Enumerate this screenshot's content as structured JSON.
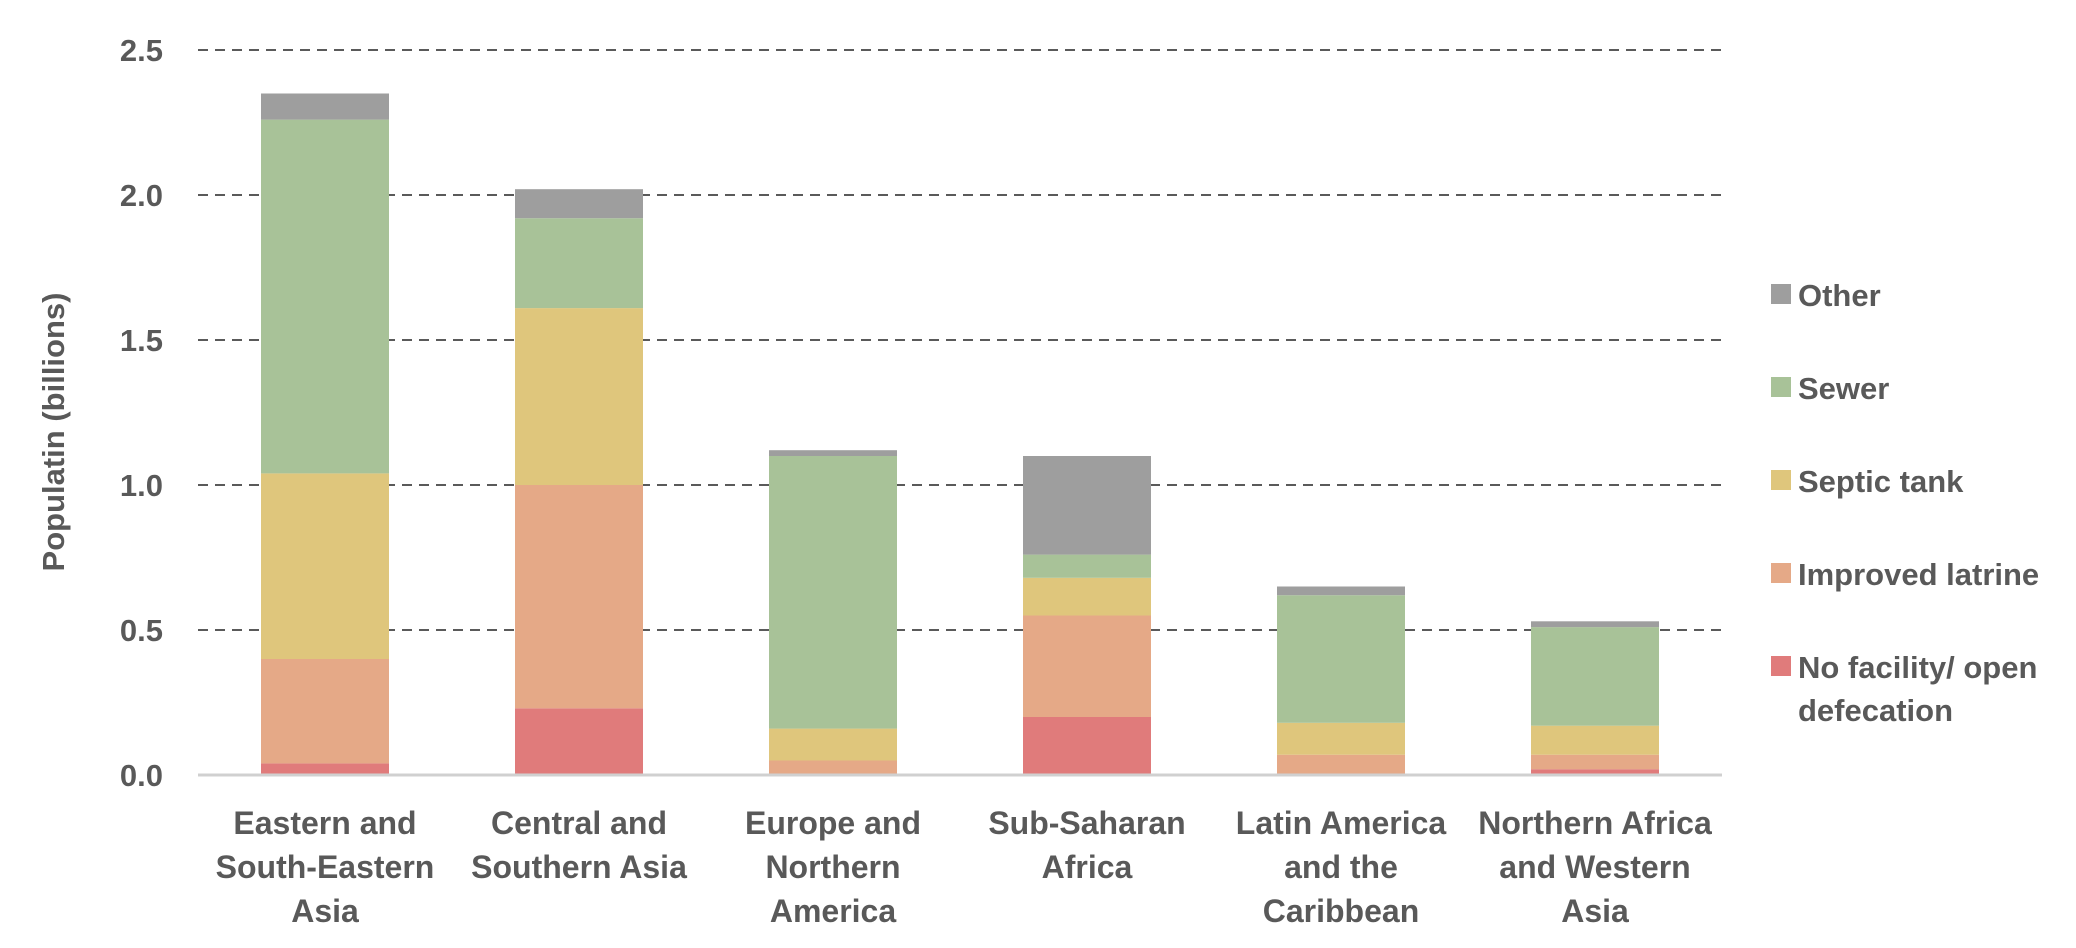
{
  "chart_data": {
    "type": "bar",
    "stacked": true,
    "ylabel": "Populatin (billions)",
    "ylim": [
      0,
      2.5
    ],
    "yticks": [
      "0.0",
      "0.5",
      "1.0",
      "1.5",
      "2.0",
      "2.5"
    ],
    "grid": "horizontal dashed",
    "legend_position": "right",
    "categories": [
      [
        "Eastern and",
        "South-Eastern",
        "Asia"
      ],
      [
        "Central and",
        "Southern Asia"
      ],
      [
        "Europe and",
        "Northern",
        "America"
      ],
      [
        "Sub-Saharan",
        "Africa"
      ],
      [
        "Latin America",
        "and the",
        "Caribbean"
      ],
      [
        "Northern Africa",
        "and Western",
        "Asia"
      ]
    ],
    "series": [
      {
        "name": "No facility/ open defecation",
        "legend_lines": [
          "No facility/ open",
          "defecation"
        ],
        "color": "#E07B7B",
        "values": [
          0.04,
          0.23,
          0.0,
          0.2,
          0.0,
          0.02
        ]
      },
      {
        "name": "Improved latrine",
        "legend_lines": [
          "Improved latrine"
        ],
        "color": "#E5A987",
        "values": [
          0.36,
          0.77,
          0.05,
          0.35,
          0.07,
          0.05
        ]
      },
      {
        "name": "Septic tank",
        "legend_lines": [
          "Septic tank"
        ],
        "color": "#DFC67C",
        "values": [
          0.64,
          0.61,
          0.11,
          0.13,
          0.11,
          0.1
        ]
      },
      {
        "name": "Sewer",
        "legend_lines": [
          "Sewer"
        ],
        "color": "#A8C298",
        "values": [
          1.22,
          0.31,
          0.94,
          0.08,
          0.44,
          0.34
        ]
      },
      {
        "name": "Other",
        "legend_lines": [
          "Other"
        ],
        "color": "#9E9E9E",
        "values": [
          0.09,
          0.1,
          0.02,
          0.34,
          0.03,
          0.02
        ]
      }
    ]
  }
}
